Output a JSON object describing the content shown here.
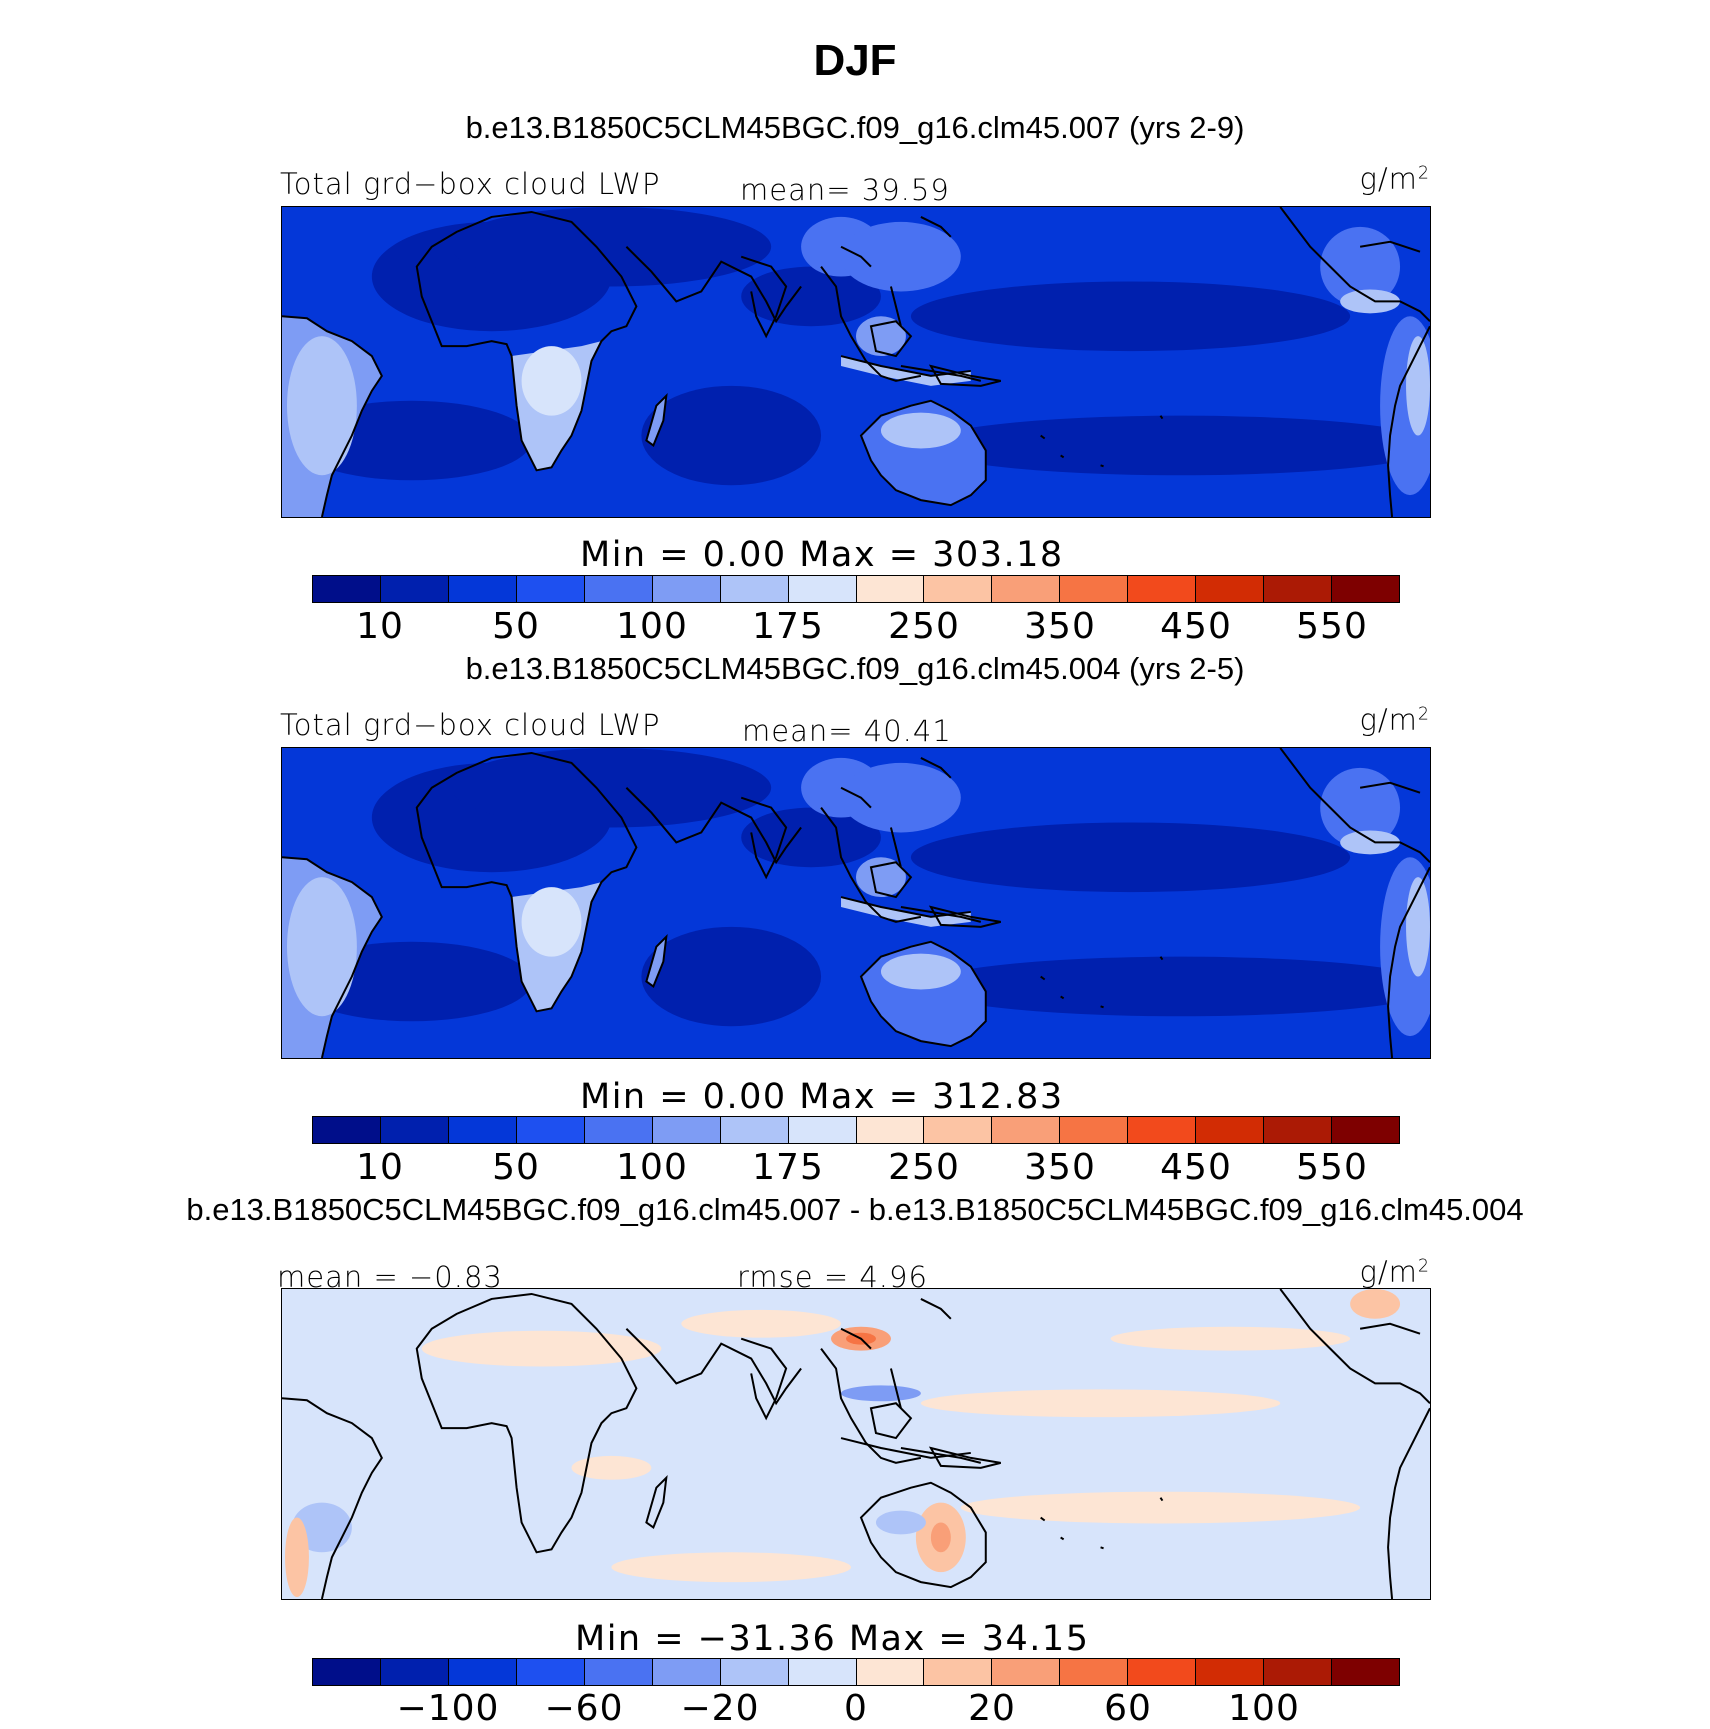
{
  "title": "DJF",
  "colormap": [
    "#000e8a",
    "#0020ae",
    "#0437d8",
    "#1e50f0",
    "#4a72f2",
    "#7e9cf4",
    "#aec4f8",
    "#d7e4fb",
    "#fde5d4",
    "#fcc4a4",
    "#f99f78",
    "#f67444",
    "#f24a1c",
    "#d22c04",
    "#ab1a05",
    "#7e0000"
  ],
  "panels": [
    {
      "case_title": "b.e13.B1850C5CLM45BGC.f09_g16.clm45.007 (yrs 2-9)",
      "left_label": "Total grd−box cloud LWP",
      "center_label": "mean=  39.59",
      "units": "g/m",
      "units_exp": "2",
      "minmax": "Min =    0.00  Max  =  303.18",
      "ticks": [
        "10",
        "50",
        "100",
        "175",
        "250",
        "350",
        "450",
        "550"
      ]
    },
    {
      "case_title": "b.e13.B1850C5CLM45BGC.f09_g16.clm45.004 (yrs 2-5)",
      "left_label": "Total grd−box cloud LWP",
      "center_label": "mean=  40.41",
      "units": "g/m",
      "units_exp": "2",
      "minmax": "Min =    0.00  Max  =  312.83",
      "ticks": [
        "10",
        "50",
        "100",
        "175",
        "250",
        "350",
        "450",
        "550"
      ]
    },
    {
      "case_title": "b.e13.B1850C5CLM45BGC.f09_g16.clm45.007 - b.e13.B1850C5CLM45BGC.f09_g16.clm45.004",
      "left_label": "mean =  −0.83",
      "center_label": "rmse =   4.96",
      "units": "g/m",
      "units_exp": "2",
      "minmax": "Min = −31.36  Max  =   34.15",
      "ticks": [
        "−100",
        "−60",
        "−20",
        "0",
        "20",
        "60",
        "100"
      ]
    }
  ]
}
